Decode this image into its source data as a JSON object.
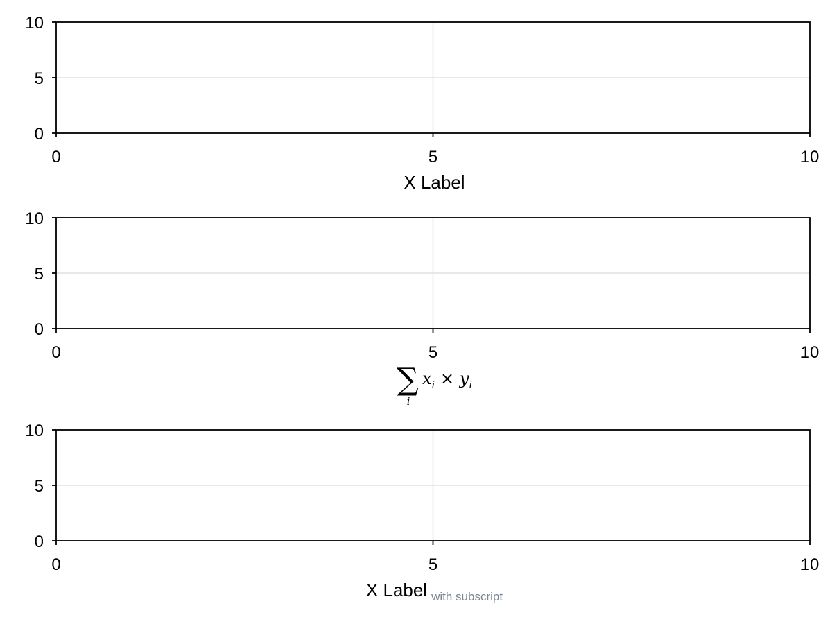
{
  "chart_data": [
    {
      "type": "line",
      "series": [],
      "xlim": [
        0,
        10
      ],
      "ylim": [
        0,
        10
      ],
      "x_ticks": [
        "0",
        "5",
        "10"
      ],
      "y_ticks": [
        "0",
        "5",
        "10"
      ],
      "grid": true,
      "xlabel": {
        "text": "X Label"
      }
    },
    {
      "type": "line",
      "series": [],
      "xlim": [
        0,
        10
      ],
      "ylim": [
        0,
        10
      ],
      "x_ticks": [
        "0",
        "5",
        "10"
      ],
      "y_ticks": [
        "0",
        "5",
        "10"
      ],
      "grid": true,
      "xlabel": {
        "math": true,
        "sum_symbol": "∑",
        "sum_index": "i",
        "var_x": "x",
        "times": "×",
        "var_y": "y",
        "subscript": "i"
      }
    },
    {
      "type": "line",
      "series": [],
      "xlim": [
        0,
        10
      ],
      "ylim": [
        0,
        10
      ],
      "x_ticks": [
        "0",
        "5",
        "10"
      ],
      "y_ticks": [
        "0",
        "5",
        "10"
      ],
      "grid": true,
      "xlabel": {
        "text": "X Label",
        "subscript_text": "with subscript",
        "subscript_color": "#7a8694"
      }
    }
  ],
  "colors": {
    "axis": "#000000",
    "grid": "#e0e0e0",
    "background": "#ffffff"
  }
}
